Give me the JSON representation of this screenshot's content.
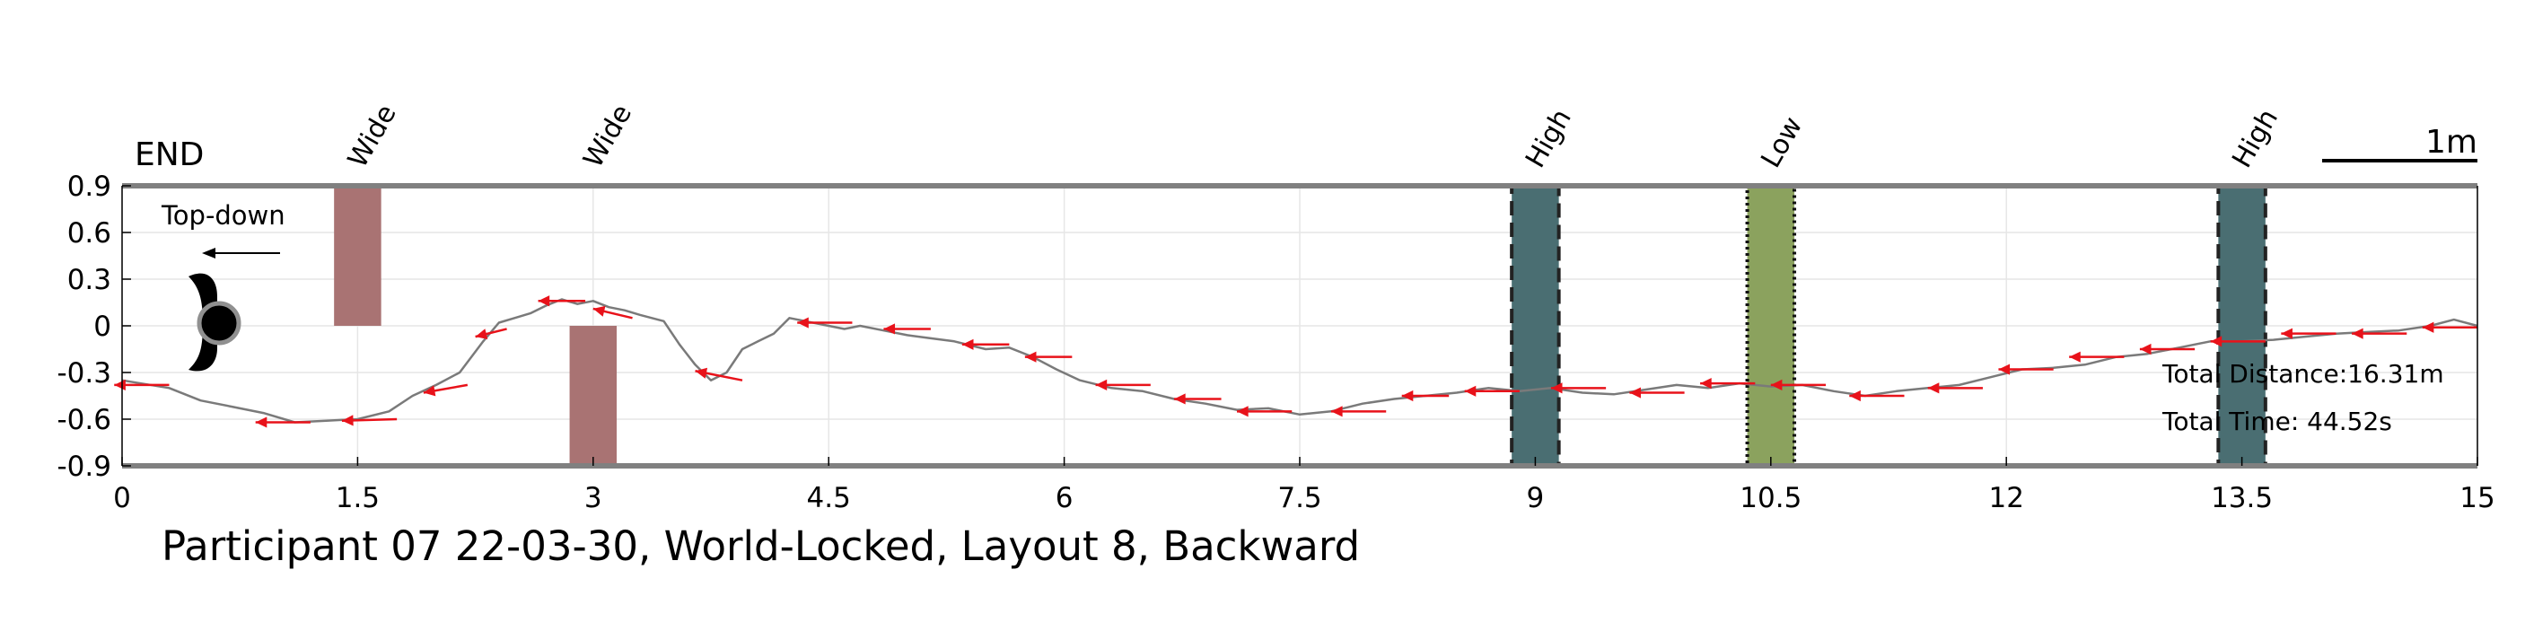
{
  "chart_data": {
    "type": "line",
    "title": "Participant 07 22-03-30, World-Locked, Layout 8, Backward",
    "xlim": [
      0,
      15
    ],
    "ylim": [
      -0.9,
      0.9
    ],
    "x_ticks": [
      0,
      1.5,
      3,
      4.5,
      6,
      7.5,
      9,
      10.5,
      12,
      13.5,
      15
    ],
    "x_tick_labels": [
      "0",
      "1.5",
      "3",
      "4.5",
      "6",
      "7.5",
      "9",
      "10.5",
      "12",
      "13.5",
      "15"
    ],
    "y_ticks": [
      0.9,
      0.6,
      0.3,
      0,
      -0.3,
      -0.6,
      -0.9
    ],
    "y_tick_labels": [
      "0.9",
      "0.6",
      "0.3",
      "0",
      "-0.3",
      "-0.6",
      "-0.9"
    ],
    "grid": true,
    "end_label": "END",
    "scale_label": "1m",
    "inset_label": "Top-down",
    "total_distance": "Total Distance:16.31m",
    "total_time": "Total Time: 44.52s",
    "colors": {
      "path": "#7a7a7a",
      "arrow": "#e8121a",
      "wide_obstacle": "#a97373",
      "high_obstacle": "#4a6e72",
      "low_obstacle": "#8ba25e",
      "border": "#808080",
      "grid": "#e6e6e6"
    },
    "obstacles": [
      {
        "label": "Wide",
        "kind": "wide",
        "x0": 1.35,
        "x1": 1.65,
        "y0": 0,
        "y1": 0.9
      },
      {
        "label": "Wide",
        "kind": "wide",
        "x0": 2.85,
        "x1": 3.15,
        "y0": -0.9,
        "y1": 0
      },
      {
        "label": "High",
        "kind": "high",
        "x0": 8.85,
        "x1": 9.15,
        "y0": -0.9,
        "y1": 0.9
      },
      {
        "label": "Low",
        "kind": "low",
        "x0": 10.35,
        "x1": 10.65,
        "y0": -0.9,
        "y1": 0.9
      },
      {
        "label": "High",
        "kind": "high",
        "x0": 13.35,
        "x1": 13.65,
        "y0": -0.9,
        "y1": 0.9
      }
    ],
    "series": [
      {
        "x": [
          0,
          0.3,
          0.5,
          0.7,
          0.9,
          1.1,
          1.3,
          1.5,
          1.7,
          1.85,
          2.0,
          2.15,
          2.3,
          2.4,
          2.5,
          2.6,
          2.7,
          2.8,
          2.9,
          3.0,
          3.1,
          3.2,
          3.3,
          3.45,
          3.55,
          3.65,
          3.75,
          3.85,
          3.95,
          4.05,
          4.15,
          4.25,
          4.35,
          4.5,
          4.6,
          4.7,
          4.85,
          5.0,
          5.15,
          5.3,
          5.5,
          5.65,
          5.8,
          5.95,
          6.1,
          6.3,
          6.5,
          6.7,
          6.9,
          7.1,
          7.3,
          7.5,
          7.7,
          7.9,
          8.1,
          8.3,
          8.5,
          8.7,
          8.9,
          9.1,
          9.3,
          9.5,
          9.7,
          9.9,
          10.1,
          10.3,
          10.5,
          10.7,
          10.9,
          11.1,
          11.3,
          11.5,
          11.7,
          11.9,
          12.1,
          12.3,
          12.5,
          12.7,
          12.9,
          13.1,
          13.3,
          13.5,
          13.7,
          13.9,
          14.1,
          14.3,
          14.5,
          14.7,
          14.85,
          15.0
        ],
        "y": [
          -0.35,
          -0.4,
          -0.48,
          -0.52,
          -0.56,
          -0.62,
          -0.61,
          -0.6,
          -0.55,
          -0.45,
          -0.38,
          -0.3,
          -0.1,
          0.02,
          0.05,
          0.08,
          0.13,
          0.17,
          0.14,
          0.16,
          0.12,
          0.1,
          0.07,
          0.03,
          -0.12,
          -0.25,
          -0.35,
          -0.3,
          -0.15,
          -0.1,
          -0.05,
          0.05,
          0.03,
          0.0,
          -0.02,
          0.0,
          -0.03,
          -0.06,
          -0.08,
          -0.1,
          -0.15,
          -0.14,
          -0.2,
          -0.28,
          -0.35,
          -0.4,
          -0.42,
          -0.47,
          -0.5,
          -0.54,
          -0.53,
          -0.57,
          -0.55,
          -0.5,
          -0.47,
          -0.45,
          -0.43,
          -0.4,
          -0.42,
          -0.4,
          -0.43,
          -0.44,
          -0.41,
          -0.38,
          -0.4,
          -0.37,
          -0.39,
          -0.38,
          -0.42,
          -0.45,
          -0.42,
          -0.4,
          -0.38,
          -0.33,
          -0.28,
          -0.27,
          -0.25,
          -0.2,
          -0.18,
          -0.14,
          -0.1,
          -0.1,
          -0.09,
          -0.07,
          -0.05,
          -0.04,
          -0.03,
          0.0,
          0.04,
          0.0
        ]
      }
    ],
    "arrows": [
      {
        "x": 0.3,
        "y": -0.38,
        "dx": -0.35,
        "dy": 0.0
      },
      {
        "x": 1.2,
        "y": -0.62,
        "dx": -0.35,
        "dy": 0.0
      },
      {
        "x": 1.75,
        "y": -0.6,
        "dx": -0.35,
        "dy": -0.01
      },
      {
        "x": 2.2,
        "y": -0.38,
        "dx": -0.28,
        "dy": -0.05
      },
      {
        "x": 2.45,
        "y": -0.02,
        "dx": -0.2,
        "dy": -0.05
      },
      {
        "x": 2.95,
        "y": 0.16,
        "dx": -0.3,
        "dy": 0.0
      },
      {
        "x": 3.25,
        "y": 0.05,
        "dx": -0.25,
        "dy": 0.06
      },
      {
        "x": 3.95,
        "y": -0.35,
        "dx": -0.3,
        "dy": 0.06
      },
      {
        "x": 4.65,
        "y": 0.02,
        "dx": -0.35,
        "dy": 0.0
      },
      {
        "x": 5.15,
        "y": -0.02,
        "dx": -0.3,
        "dy": 0.0
      },
      {
        "x": 5.65,
        "y": -0.12,
        "dx": -0.3,
        "dy": 0.0
      },
      {
        "x": 6.05,
        "y": -0.2,
        "dx": -0.3,
        "dy": 0.0
      },
      {
        "x": 6.55,
        "y": -0.38,
        "dx": -0.35,
        "dy": 0.0
      },
      {
        "x": 7.0,
        "y": -0.47,
        "dx": -0.3,
        "dy": 0.0
      },
      {
        "x": 7.45,
        "y": -0.55,
        "dx": -0.35,
        "dy": 0.0
      },
      {
        "x": 8.05,
        "y": -0.55,
        "dx": -0.35,
        "dy": 0.0
      },
      {
        "x": 8.45,
        "y": -0.45,
        "dx": -0.3,
        "dy": 0.0
      },
      {
        "x": 8.9,
        "y": -0.42,
        "dx": -0.35,
        "dy": 0.0
      },
      {
        "x": 9.45,
        "y": -0.4,
        "dx": -0.35,
        "dy": 0.0
      },
      {
        "x": 9.95,
        "y": -0.43,
        "dx": -0.35,
        "dy": 0.0
      },
      {
        "x": 10.4,
        "y": -0.37,
        "dx": -0.35,
        "dy": 0.0
      },
      {
        "x": 10.85,
        "y": -0.38,
        "dx": -0.35,
        "dy": 0.0
      },
      {
        "x": 11.35,
        "y": -0.45,
        "dx": -0.35,
        "dy": 0.0
      },
      {
        "x": 11.85,
        "y": -0.4,
        "dx": -0.35,
        "dy": 0.0
      },
      {
        "x": 12.3,
        "y": -0.28,
        "dx": -0.35,
        "dy": 0.0
      },
      {
        "x": 12.75,
        "y": -0.2,
        "dx": -0.35,
        "dy": 0.0
      },
      {
        "x": 13.2,
        "y": -0.15,
        "dx": -0.35,
        "dy": 0.0
      },
      {
        "x": 13.65,
        "y": -0.1,
        "dx": -0.35,
        "dy": 0.0
      },
      {
        "x": 14.1,
        "y": -0.05,
        "dx": -0.35,
        "dy": 0.0
      },
      {
        "x": 14.55,
        "y": -0.05,
        "dx": -0.35,
        "dy": 0.0
      },
      {
        "x": 15.0,
        "y": -0.01,
        "dx": -0.35,
        "dy": 0.0
      }
    ]
  }
}
